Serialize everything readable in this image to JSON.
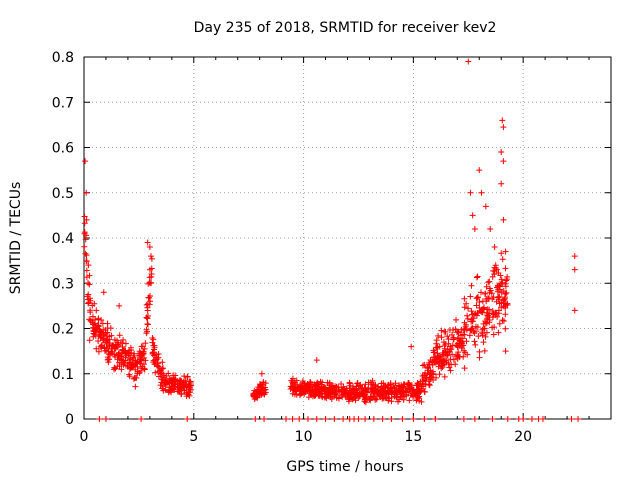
{
  "chart_data": {
    "type": "scatter",
    "title": "Day 235 of 2018, SRMTID for receiver kev2",
    "xlabel": "GPS time / hours",
    "ylabel": "SRMTID / TECUs",
    "xlim": [
      0,
      24
    ],
    "ylim": [
      0,
      0.8
    ],
    "xticks": [
      0,
      5,
      10,
      15,
      20
    ],
    "yticks": [
      0,
      0.1,
      0.2,
      0.3,
      0.4,
      0.5,
      0.6,
      0.7,
      0.8
    ],
    "ytick_labels": [
      "0",
      "0.1",
      "0.2",
      "0.3",
      "0.4",
      "0.5",
      "0.6",
      "0.7",
      "0.8"
    ],
    "grid": true,
    "marker": "+",
    "color": "#ff0000",
    "series": [
      {
        "name": "SRMTID",
        "segments": [
          {
            "x0": 0.0,
            "x1": 0.3,
            "y0": 0.42,
            "y1": 0.22,
            "spread": 0.08
          },
          {
            "x0": 0.3,
            "x1": 1.0,
            "y0": 0.22,
            "y1": 0.17,
            "spread": 0.05
          },
          {
            "x0": 1.0,
            "x1": 2.4,
            "y0": 0.17,
            "y1": 0.11,
            "spread": 0.05
          },
          {
            "x0": 2.4,
            "x1": 2.8,
            "y0": 0.11,
            "y1": 0.15,
            "spread": 0.04
          },
          {
            "x0": 2.8,
            "x1": 3.1,
            "y0": 0.2,
            "y1": 0.32,
            "spread": 0.06
          },
          {
            "x0": 3.1,
            "x1": 3.6,
            "y0": 0.15,
            "y1": 0.1,
            "spread": 0.04
          },
          {
            "x0": 3.6,
            "x1": 4.9,
            "y0": 0.08,
            "y1": 0.07,
            "spread": 0.025
          },
          {
            "x0": 7.7,
            "x1": 8.3,
            "y0": 0.05,
            "y1": 0.07,
            "spread": 0.02
          },
          {
            "x0": 9.4,
            "x1": 12.0,
            "y0": 0.07,
            "y1": 0.06,
            "spread": 0.02
          },
          {
            "x0": 12.0,
            "x1": 15.4,
            "y0": 0.06,
            "y1": 0.06,
            "spread": 0.025
          },
          {
            "x0": 15.4,
            "x1": 16.0,
            "y0": 0.08,
            "y1": 0.13,
            "spread": 0.04
          },
          {
            "x0": 16.0,
            "x1": 17.3,
            "y0": 0.13,
            "y1": 0.18,
            "spread": 0.06
          },
          {
            "x0": 17.3,
            "x1": 19.3,
            "y0": 0.2,
            "y1": 0.28,
            "spread": 0.1
          }
        ],
        "outliers": [
          {
            "x": 0.05,
            "y": 0.57
          },
          {
            "x": 0.1,
            "y": 0.5
          },
          {
            "x": 0.12,
            "y": 0.44
          },
          {
            "x": 0.2,
            "y": 0.34
          },
          {
            "x": 0.9,
            "y": 0.28
          },
          {
            "x": 1.6,
            "y": 0.25
          },
          {
            "x": 2.9,
            "y": 0.39
          },
          {
            "x": 3.0,
            "y": 0.38
          },
          {
            "x": 3.05,
            "y": 0.36
          },
          {
            "x": 8.1,
            "y": 0.1
          },
          {
            "x": 10.6,
            "y": 0.13
          },
          {
            "x": 14.9,
            "y": 0.16
          },
          {
            "x": 17.5,
            "y": 0.79
          },
          {
            "x": 17.6,
            "y": 0.5
          },
          {
            "x": 17.7,
            "y": 0.45
          },
          {
            "x": 17.8,
            "y": 0.42
          },
          {
            "x": 18.0,
            "y": 0.55
          },
          {
            "x": 18.1,
            "y": 0.5
          },
          {
            "x": 18.3,
            "y": 0.47
          },
          {
            "x": 18.5,
            "y": 0.42
          },
          {
            "x": 18.7,
            "y": 0.38
          },
          {
            "x": 18.8,
            "y": 0.33
          },
          {
            "x": 19.05,
            "y": 0.66
          },
          {
            "x": 19.1,
            "y": 0.645
          },
          {
            "x": 19.0,
            "y": 0.59
          },
          {
            "x": 19.1,
            "y": 0.57
          },
          {
            "x": 19.0,
            "y": 0.52
          },
          {
            "x": 19.1,
            "y": 0.44
          },
          {
            "x": 19.2,
            "y": 0.37
          },
          {
            "x": 19.2,
            "y": 0.15
          },
          {
            "x": 22.35,
            "y": 0.36
          },
          {
            "x": 22.35,
            "y": 0.33
          },
          {
            "x": 22.35,
            "y": 0.24
          }
        ],
        "zero_x": [
          0.7,
          1.0,
          2.6,
          4.7,
          7.8,
          8.2,
          9.2,
          9.5,
          9.8,
          10.2,
          10.6,
          11.0,
          11.4,
          11.8,
          12.1,
          12.3,
          12.5,
          12.8,
          13.2,
          13.6,
          14.0,
          14.5,
          15.0,
          15.5,
          16.0,
          17.3,
          17.8,
          18.6,
          19.3,
          19.8,
          20.0,
          20.4,
          20.7,
          20.9,
          22.2,
          22.5
        ]
      }
    ]
  }
}
